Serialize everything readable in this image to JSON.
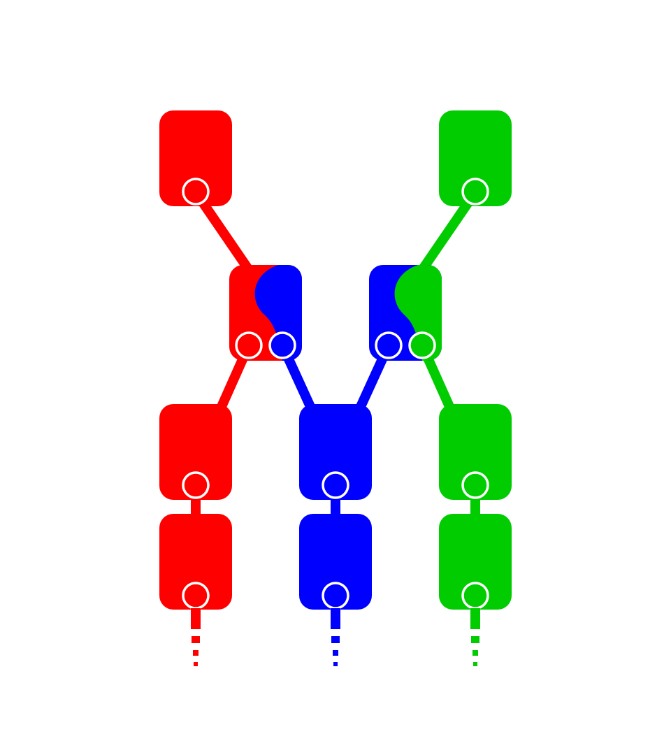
{
  "colors": {
    "background": "#ffffff",
    "red": "#ff0000",
    "blue": "#0000ff",
    "green": "#00cc00",
    "port_outline": "#ffffff"
  },
  "nodes": [
    {
      "id": "red-top",
      "color": "red"
    },
    {
      "id": "mixed-left",
      "colors": [
        "red",
        "blue"
      ]
    },
    {
      "id": "mixed-right",
      "colors": [
        "blue",
        "green"
      ]
    },
    {
      "id": "green-top",
      "color": "green"
    },
    {
      "id": "red-mid",
      "color": "red"
    },
    {
      "id": "blue-mid",
      "color": "blue"
    },
    {
      "id": "green-mid",
      "color": "green"
    },
    {
      "id": "red-bottom",
      "color": "red"
    },
    {
      "id": "blue-bottom",
      "color": "blue"
    },
    {
      "id": "green-bottom",
      "color": "green"
    }
  ],
  "edges": [
    {
      "from": "red-top",
      "to": "mixed-left",
      "color": "red"
    },
    {
      "from": "green-top",
      "to": "mixed-right",
      "color": "green"
    },
    {
      "from": "mixed-left",
      "to": "red-mid",
      "color": "red"
    },
    {
      "from": "mixed-left",
      "to": "blue-mid",
      "color": "blue"
    },
    {
      "from": "mixed-right",
      "to": "blue-mid",
      "color": "blue"
    },
    {
      "from": "mixed-right",
      "to": "green-mid",
      "color": "green"
    },
    {
      "from": "red-mid",
      "to": "red-bottom",
      "color": "red"
    },
    {
      "from": "blue-mid",
      "to": "blue-bottom",
      "color": "blue"
    },
    {
      "from": "green-mid",
      "to": "green-bottom",
      "color": "green"
    }
  ],
  "continuations": [
    {
      "from": "red-bottom",
      "color": "red"
    },
    {
      "from": "blue-bottom",
      "color": "blue"
    },
    {
      "from": "green-bottom",
      "color": "green"
    }
  ]
}
